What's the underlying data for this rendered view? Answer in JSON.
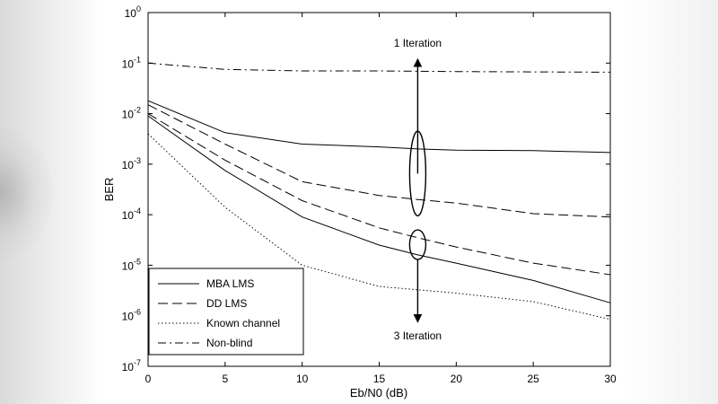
{
  "chart_data": {
    "type": "line",
    "title": "",
    "xlabel": "Eb/N0 (dB)",
    "ylabel": "BER",
    "xlim": [
      0,
      30
    ],
    "ylim": [
      1e-07,
      1
    ],
    "yscale": "log",
    "grid": false,
    "x_ticks": [
      "0",
      "5",
      "10",
      "15",
      "20",
      "25",
      "30"
    ],
    "y_ticks": [
      {
        "base": "10",
        "exp": "0"
      },
      {
        "base": "10",
        "exp": "-1"
      },
      {
        "base": "10",
        "exp": "-2"
      },
      {
        "base": "10",
        "exp": "-3"
      },
      {
        "base": "10",
        "exp": "-4"
      },
      {
        "base": "10",
        "exp": "-5"
      },
      {
        "base": "10",
        "exp": "-6"
      },
      {
        "base": "10",
        "exp": "-7"
      }
    ],
    "legend_position": "bottom-left",
    "legend": [
      "MBA LMS",
      "DD LMS",
      "Known channel",
      "Non-blind"
    ],
    "series": [
      {
        "name": "MBA LMS",
        "style": "solid",
        "iteration": 1,
        "x": [
          0,
          5,
          10,
          15,
          17.5,
          20,
          25,
          30
        ],
        "y": [
          0.018,
          0.0042,
          0.0025,
          0.0022,
          0.002,
          0.0019,
          0.00185,
          0.0017
        ]
      },
      {
        "name": "DD LMS",
        "style": "dashed",
        "iteration": 1,
        "x": [
          0,
          5,
          10,
          15,
          17.5,
          20,
          25,
          30
        ],
        "y": [
          0.015,
          0.0025,
          0.00045,
          0.00024,
          0.0002,
          0.00017,
          0.000105,
          9e-05
        ]
      },
      {
        "name": "DD LMS",
        "style": "dashed",
        "iteration": 3,
        "x": [
          0,
          5,
          10,
          15,
          17.5,
          20,
          25,
          30
        ],
        "y": [
          0.01,
          0.0012,
          0.00019,
          5.5e-05,
          3.5e-05,
          2.3e-05,
          1.1e-05,
          6.5e-06
        ]
      },
      {
        "name": "MBA LMS",
        "style": "solid",
        "iteration": 3,
        "x": [
          0,
          5,
          10,
          15,
          17.5,
          20,
          25,
          30
        ],
        "y": [
          0.009,
          0.00075,
          9e-05,
          2.5e-05,
          1.6e-05,
          1.1e-05,
          5e-06,
          1.8e-06
        ]
      },
      {
        "name": "Known channel",
        "style": "dotted",
        "x": [
          0,
          5,
          10,
          15,
          20,
          25,
          30
        ],
        "y": [
          0.004,
          0.00014,
          1e-05,
          3.8e-06,
          2.8e-06,
          1.9e-06,
          8.5e-07
        ]
      },
      {
        "name": "Non-blind",
        "style": "dashdot",
        "x": [
          0,
          5,
          10,
          15,
          20,
          25,
          30
        ],
        "y": [
          0.1,
          0.075,
          0.07,
          0.07,
          0.068,
          0.067,
          0.066
        ]
      }
    ],
    "annotations": [
      {
        "text": "1 Iteration",
        "x": 17.5,
        "y": 0.25
      },
      {
        "text": "3 Iteration",
        "x": 17.5,
        "y": 4e-07
      }
    ],
    "arrows": [
      {
        "name": "up-arrow",
        "x": 17.5,
        "y_from": 0.00065,
        "y_to": 0.12
      },
      {
        "name": "down-arrow",
        "x": 17.5,
        "y_from": 1.3e-05,
        "y_to": 7.5e-07
      }
    ],
    "ellipses": [
      {
        "name": "iteration-1-ellipse",
        "x": 17.5,
        "y_top": 0.0045,
        "y_bottom": 9.5e-05
      },
      {
        "name": "iteration-3-ellipse",
        "x": 17.5,
        "y_top": 5e-05,
        "y_bottom": 1.3e-05
      }
    ]
  }
}
